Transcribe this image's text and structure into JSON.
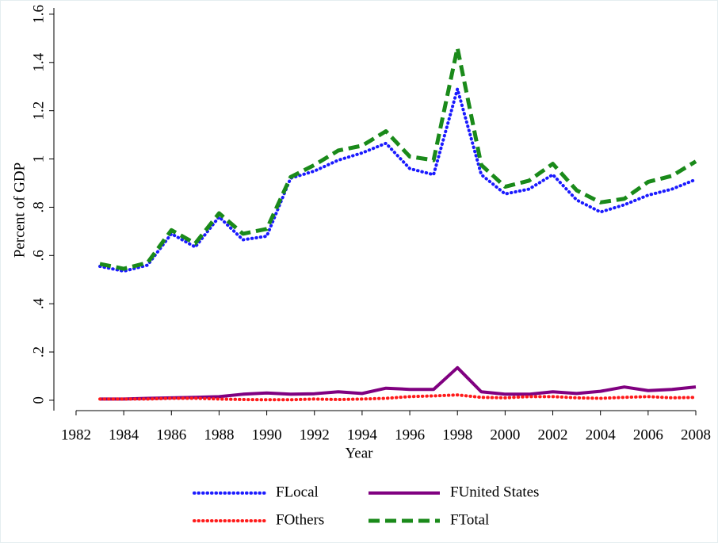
{
  "chart_data": {
    "type": "line",
    "xlabel": "Year",
    "ylabel": "Percent of GDP",
    "x": [
      1983,
      1984,
      1985,
      1986,
      1987,
      1988,
      1989,
      1990,
      1991,
      1992,
      1993,
      1994,
      1995,
      1996,
      1997,
      1998,
      1999,
      2000,
      2001,
      2002,
      2003,
      2004,
      2005,
      2006,
      2007,
      2008
    ],
    "series": [
      {
        "name": "FLocal",
        "color": "#1a1aff",
        "style": "dotted",
        "values": [
          0.555,
          0.535,
          0.56,
          0.69,
          0.635,
          0.76,
          0.665,
          0.68,
          0.92,
          0.95,
          0.995,
          1.025,
          1.065,
          0.96,
          0.935,
          1.29,
          0.935,
          0.855,
          0.875,
          0.935,
          0.83,
          0.78,
          0.81,
          0.85,
          0.875,
          0.915
        ]
      },
      {
        "name": "FUnited States",
        "color": "#800080",
        "style": "solid",
        "values": [
          0.005,
          0.005,
          0.008,
          0.01,
          0.012,
          0.015,
          0.025,
          0.03,
          0.025,
          0.027,
          0.035,
          0.028,
          0.05,
          0.045,
          0.045,
          0.135,
          0.035,
          0.025,
          0.025,
          0.035,
          0.028,
          0.037,
          0.055,
          0.04,
          0.045,
          0.055
        ]
      },
      {
        "name": "FOthers",
        "color": "#ff1a1a",
        "style": "dotted",
        "values": [
          0.005,
          0.005,
          0.005,
          0.008,
          0.008,
          0.005,
          0.003,
          0.002,
          0.002,
          0.005,
          0.003,
          0.005,
          0.008,
          0.015,
          0.018,
          0.022,
          0.012,
          0.01,
          0.015,
          0.015,
          0.01,
          0.008,
          0.012,
          0.015,
          0.01,
          0.012
        ]
      },
      {
        "name": "FTotal",
        "color": "#1a8a1a",
        "style": "dashed",
        "values": [
          0.565,
          0.545,
          0.57,
          0.705,
          0.65,
          0.775,
          0.69,
          0.71,
          0.925,
          0.975,
          1.035,
          1.055,
          1.115,
          1.01,
          0.995,
          1.46,
          0.975,
          0.885,
          0.91,
          0.98,
          0.87,
          0.82,
          0.835,
          0.905,
          0.93,
          0.99
        ]
      }
    ],
    "xlim": [
      1981.07,
      2008
    ],
    "xticks": [
      1982,
      1984,
      1986,
      1988,
      1990,
      1992,
      1994,
      1996,
      1998,
      2000,
      2002,
      2004,
      2006,
      2008
    ],
    "ylim": [
      -0.043,
      1.626
    ],
    "yticks": [
      0,
      {
        "value": 0.2,
        "label": ".2"
      },
      {
        "value": 0.4,
        "label": ".4"
      },
      {
        "value": 0.6,
        "label": ".6"
      },
      {
        "value": 0.8,
        "label": ".8"
      },
      1,
      1.2,
      1.4,
      1.6
    ],
    "grid": false,
    "legend": "bottom"
  }
}
